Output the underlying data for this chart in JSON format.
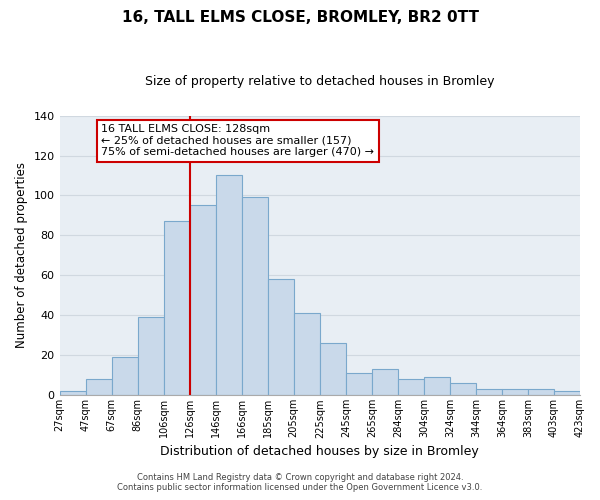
{
  "title": "16, TALL ELMS CLOSE, BROMLEY, BR2 0TT",
  "subtitle": "Size of property relative to detached houses in Bromley",
  "xlabel": "Distribution of detached houses by size in Bromley",
  "ylabel": "Number of detached properties",
  "bar_labels": [
    "27sqm",
    "47sqm",
    "67sqm",
    "86sqm",
    "106sqm",
    "126sqm",
    "146sqm",
    "166sqm",
    "185sqm",
    "205sqm",
    "225sqm",
    "245sqm",
    "265sqm",
    "284sqm",
    "304sqm",
    "324sqm",
    "344sqm",
    "364sqm",
    "383sqm",
    "403sqm",
    "423sqm"
  ],
  "bar_values": [
    2,
    8,
    19,
    39,
    87,
    95,
    110,
    99,
    58,
    41,
    26,
    11,
    13,
    8,
    9,
    6,
    3,
    3,
    3,
    2
  ],
  "bar_color": "#c9d9ea",
  "bar_edge_color": "#7aa8cc",
  "grid_color": "#d0d8e0",
  "bg_color": "#e8eef4",
  "ylim": [
    0,
    140
  ],
  "yticks": [
    0,
    20,
    40,
    60,
    80,
    100,
    120,
    140
  ],
  "vline_color": "#cc0000",
  "annotation_title": "16 TALL ELMS CLOSE: 128sqm",
  "annotation_line1": "← 25% of detached houses are smaller (157)",
  "annotation_line2": "75% of semi-detached houses are larger (470) →",
  "annotation_box_color": "#ffffff",
  "annotation_border_color": "#cc0000",
  "footer1": "Contains HM Land Registry data © Crown copyright and database right 2024.",
  "footer2": "Contains public sector information licensed under the Open Government Licence v3.0."
}
